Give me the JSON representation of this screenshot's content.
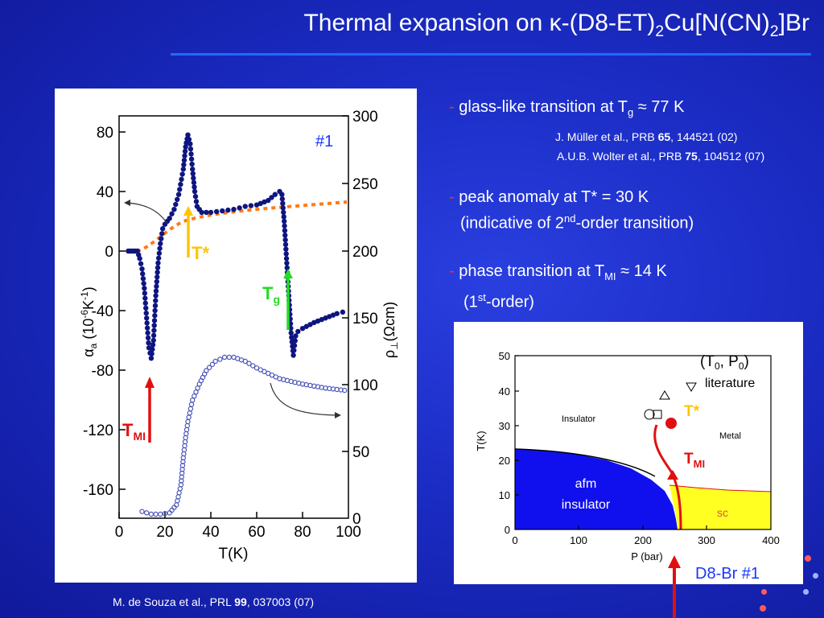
{
  "title": {
    "prefix": "Thermal expansion on ",
    "kappa": "κ",
    "part1": "-(D8-ET)",
    "sub1": "2",
    "part2": "Cu[N(CN)",
    "sub2": "2",
    "part3": "]Br"
  },
  "bullets": {
    "glass": {
      "dash": "-",
      "text": " glass-like transition at T",
      "sub": "g",
      "rest": " ≈ 77 K"
    },
    "ref1": {
      "pre": "J. Müller et al., PRB ",
      "bold": "65",
      "post": ", 144521 (02)"
    },
    "ref2": {
      "pre": "A.U.B. Wolter et al., PRB ",
      "bold": "75",
      "post": ", 104512 (07)"
    },
    "peak": {
      "dash": "-",
      "text": " peak anomaly at T* = 30 K"
    },
    "peak2": {
      "pre": "(indicative of 2",
      "sup": "nd",
      "post": "-order transition)"
    },
    "phase": {
      "dash": "-",
      "text": "  phase transition at T",
      "sub": "MI",
      "rest": "  ≈ 14 K"
    },
    "phase2": {
      "pre": "(1",
      "sup": "st",
      "post": "-order)"
    }
  },
  "citation": {
    "pre": "M. de Souza et al., PRL ",
    "bold": "99",
    "post": ", 037003 (07)"
  },
  "sample_tag": "D8-Br #1",
  "left_plot": {
    "sample_label": "#1",
    "y_left_ticks": [
      "80",
      "40",
      "0",
      "-40",
      "-80",
      "-120",
      "-160"
    ],
    "y_right_ticks": [
      "300",
      "250",
      "200",
      "150",
      "100",
      "50",
      "0"
    ],
    "x_ticks": [
      "0",
      "20",
      "40",
      "60",
      "80",
      "100"
    ],
    "xlabel": "T(K)",
    "ylabel_left": "α_a (10^-6 K^-1)",
    "ylabel_right": "ρ⊥(Ωcm)",
    "labels": {
      "tstar": "T*",
      "tg": "T",
      "tg_sub": "g",
      "tmi": "T",
      "tmi_sub": "MI"
    },
    "colors": {
      "alpha": "#0e1580",
      "rho": "#4a55b8",
      "background": "#ff7a1a",
      "tstar_arrow": "#ffc400",
      "tg_arrow": "#22dd22",
      "tmi_arrow": "#e01010"
    }
  },
  "phase_diagram": {
    "y_ticks": [
      "50",
      "40",
      "30",
      "20",
      "10",
      "0"
    ],
    "x_ticks": [
      "0",
      "100",
      "200",
      "300",
      "400"
    ],
    "ylabel": "T(K)",
    "xlabel": "P (bar)",
    "regions": {
      "insulator": "Insulator",
      "metal": "Metal",
      "afm": "afm",
      "afm2": "insulator",
      "sc": "sc"
    },
    "legend": {
      "t0p0": "(T",
      "t0p0_sub1": "0",
      "t0p0_mid": ", P",
      "t0p0_sub2": "0",
      "t0p0_end": ")",
      "literature": "literature"
    },
    "labels": {
      "tstar": "T*",
      "tmi": "T",
      "tmi_sub": "MI"
    },
    "colors": {
      "afm": "#1010ee",
      "sc": "#ffff22",
      "boundary": "#e01010",
      "tstar": "#ffc400"
    }
  }
}
